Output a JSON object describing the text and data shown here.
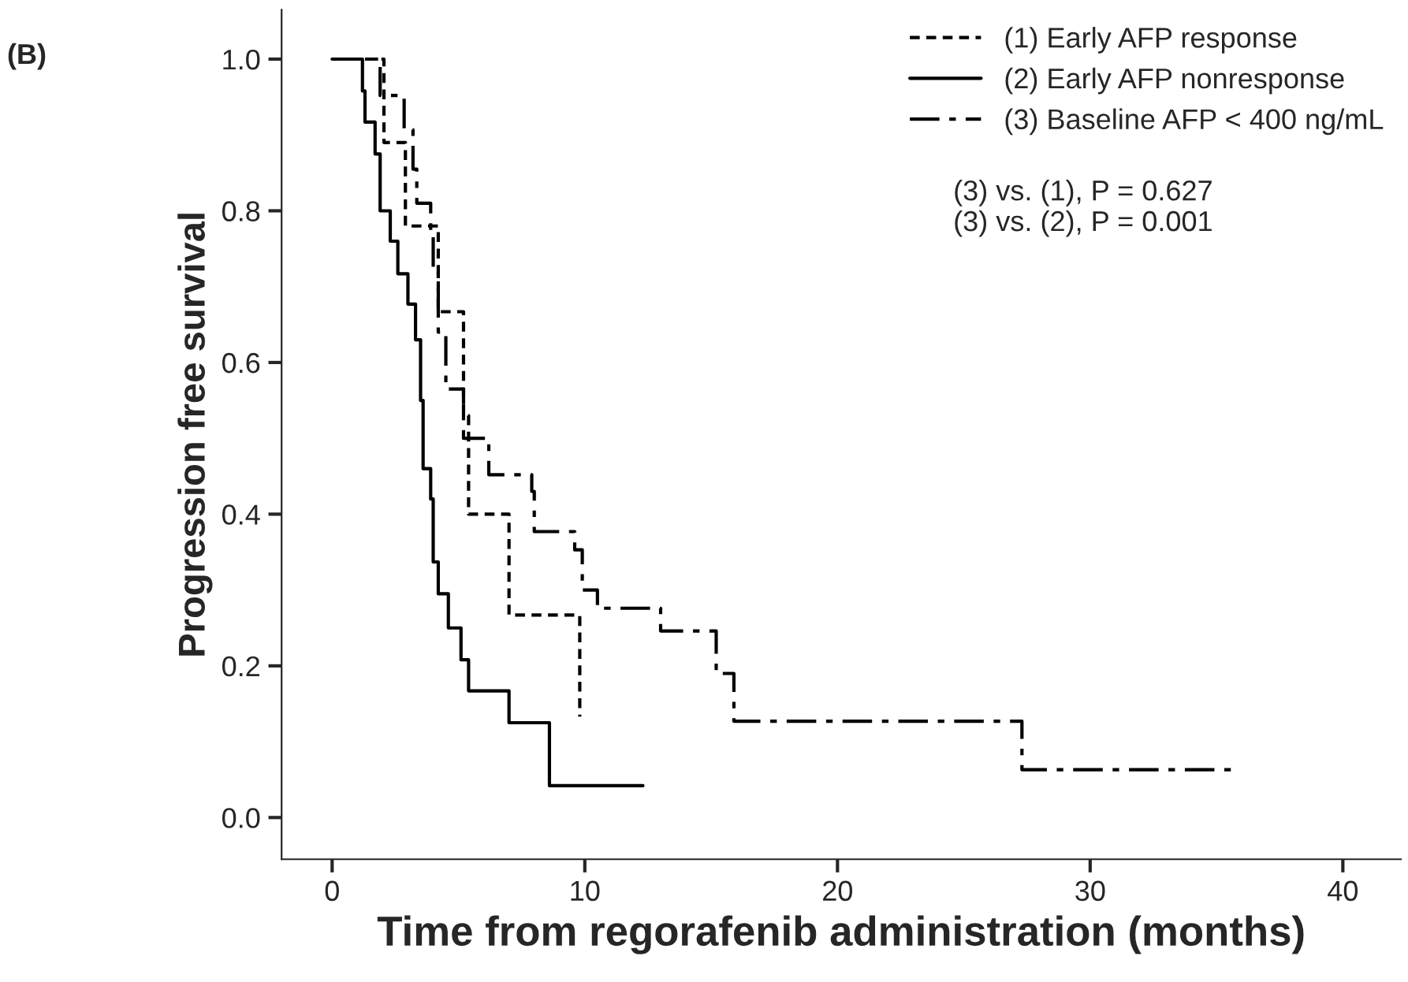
{
  "chart_data": {
    "type": "step",
    "xlabel": "Time from regorafenib administration (months)",
    "ylabel": "Progression free survival",
    "xlim": [
      -2,
      42.3
    ],
    "ylim": [
      -0.055,
      1.065
    ],
    "xticks": [
      0,
      10,
      20,
      30,
      40
    ],
    "yticks": [
      {
        "value": 0,
        "label": "0.0"
      },
      {
        "value": 0.2,
        "label": "0.2"
      },
      {
        "value": 0.4,
        "label": "0.4"
      },
      {
        "value": 0.6,
        "label": "0.6"
      },
      {
        "value": 0.8,
        "label": "0.8"
      },
      {
        "value": 1,
        "label": "1.0"
      }
    ],
    "grid": false,
    "legend": "top right",
    "annotations": [
      "(B)",
      "(3) vs. (1), P = 0.627",
      "(3) vs. (2), P = 0.001"
    ],
    "series": [
      {
        "name": "(1) Early AFP response",
        "color": "#000000",
        "line_style": "dashed",
        "x": [
          0,
          2.05,
          2.9,
          4.2,
          5.2,
          5.4,
          7.0,
          9.8
        ],
        "values": [
          1,
          0.89,
          0.78,
          0.667,
          0.53,
          0.4,
          0.267,
          0.133
        ]
      },
      {
        "name": "(2) Early AFP nonresponse",
        "color": "#000000",
        "line_style": "solid",
        "x": [
          0,
          1.2,
          1.3,
          1.7,
          1.9,
          2.3,
          2.6,
          3.0,
          3.3,
          3.5,
          3.6,
          3.9,
          4.0,
          4.2,
          4.6,
          5.1,
          5.4,
          7.0,
          8.6,
          12.3
        ],
        "values": [
          1,
          0.958,
          0.917,
          0.875,
          0.8,
          0.76,
          0.717,
          0.677,
          0.63,
          0.55,
          0.46,
          0.42,
          0.337,
          0.295,
          0.25,
          0.208,
          0.167,
          0.125,
          0.042,
          0.042
        ]
      },
      {
        "name": "(3) Baseline AFP < 400 ng/mL",
        "color": "#000000",
        "line_style": "dashdot",
        "x": [
          0,
          1.9,
          2.85,
          3.2,
          3.35,
          3.9,
          4.0,
          4.2,
          4.5,
          5.2,
          6.2,
          7.9,
          8.0,
          9.6,
          9.9,
          10.5,
          13.0,
          15.2,
          15.9,
          27.3,
          35.7
        ],
        "values": [
          1,
          0.952,
          0.907,
          0.855,
          0.81,
          0.767,
          0.72,
          0.64,
          0.565,
          0.5,
          0.452,
          0.43,
          0.377,
          0.353,
          0.3,
          0.276,
          0.246,
          0.19,
          0.127,
          0.063,
          0.063
        ]
      }
    ]
  }
}
